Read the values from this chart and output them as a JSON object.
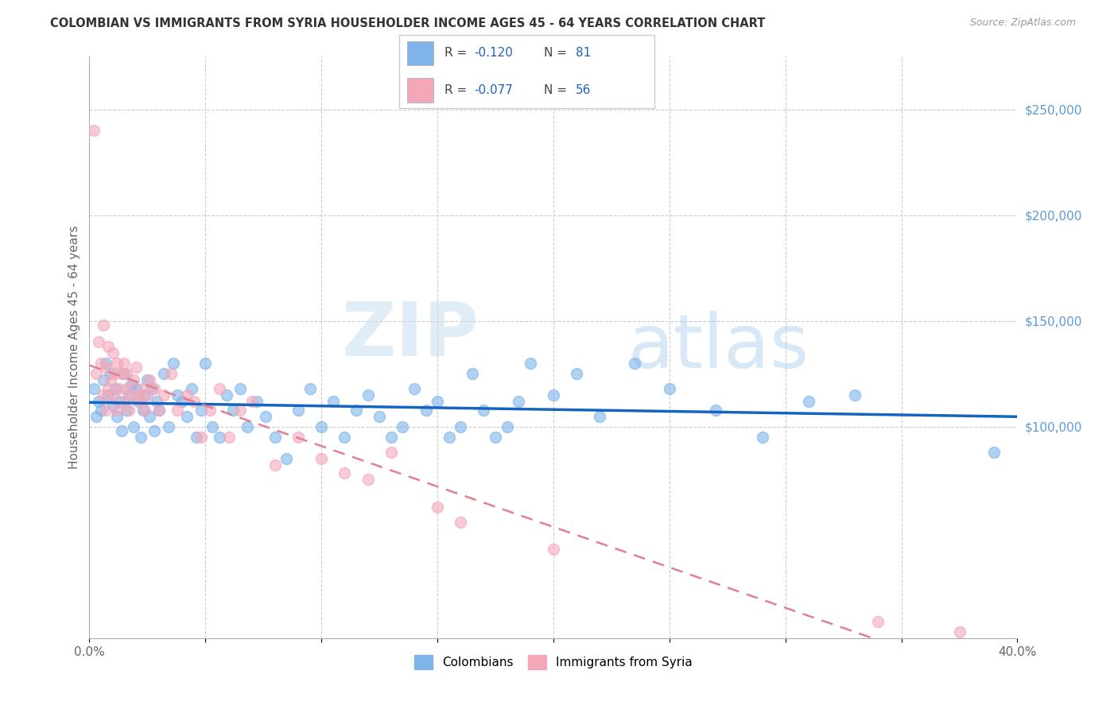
{
  "title": "COLOMBIAN VS IMMIGRANTS FROM SYRIA HOUSEHOLDER INCOME AGES 45 - 64 YEARS CORRELATION CHART",
  "source": "Source: ZipAtlas.com",
  "ylabel": "Householder Income Ages 45 - 64 years",
  "xlim": [
    0.0,
    0.4
  ],
  "ylim": [
    0,
    275000
  ],
  "right_ytick_vals": [
    100000,
    150000,
    200000,
    250000
  ],
  "right_ytick_labels": [
    "$100,000",
    "$150,000",
    "$200,000",
    "$250,000"
  ],
  "color_colombian": "#7eb4ea",
  "color_syria": "#f4a7b9",
  "color_trend_colombian": "#1565c0",
  "color_trend_syria": "#e08090",
  "watermark_zip": "ZIP",
  "watermark_atlas": "atlas",
  "colombian_x": [
    0.002,
    0.003,
    0.004,
    0.005,
    0.006,
    0.007,
    0.008,
    0.009,
    0.01,
    0.011,
    0.012,
    0.013,
    0.014,
    0.015,
    0.016,
    0.017,
    0.018,
    0.019,
    0.02,
    0.021,
    0.022,
    0.023,
    0.024,
    0.025,
    0.026,
    0.027,
    0.028,
    0.029,
    0.03,
    0.032,
    0.034,
    0.036,
    0.038,
    0.04,
    0.042,
    0.044,
    0.046,
    0.048,
    0.05,
    0.053,
    0.056,
    0.059,
    0.062,
    0.065,
    0.068,
    0.072,
    0.076,
    0.08,
    0.085,
    0.09,
    0.095,
    0.1,
    0.105,
    0.11,
    0.115,
    0.12,
    0.125,
    0.13,
    0.135,
    0.14,
    0.145,
    0.15,
    0.155,
    0.16,
    0.165,
    0.17,
    0.175,
    0.18,
    0.185,
    0.19,
    0.2,
    0.21,
    0.22,
    0.235,
    0.25,
    0.27,
    0.29,
    0.31,
    0.33,
    0.39
  ],
  "colombian_y": [
    118000,
    105000,
    112000,
    108000,
    122000,
    130000,
    115000,
    125000,
    110000,
    118000,
    105000,
    112000,
    98000,
    125000,
    108000,
    115000,
    120000,
    100000,
    118000,
    112000,
    95000,
    108000,
    115000,
    122000,
    105000,
    118000,
    98000,
    112000,
    108000,
    125000,
    100000,
    130000,
    115000,
    112000,
    105000,
    118000,
    95000,
    108000,
    130000,
    100000,
    95000,
    115000,
    108000,
    118000,
    100000,
    112000,
    105000,
    95000,
    85000,
    108000,
    118000,
    100000,
    112000,
    95000,
    108000,
    115000,
    105000,
    95000,
    100000,
    118000,
    108000,
    112000,
    95000,
    100000,
    125000,
    108000,
    95000,
    100000,
    112000,
    130000,
    115000,
    125000,
    105000,
    130000,
    118000,
    108000,
    95000,
    112000,
    115000,
    88000
  ],
  "syria_x": [
    0.002,
    0.003,
    0.004,
    0.005,
    0.006,
    0.006,
    0.007,
    0.007,
    0.008,
    0.008,
    0.009,
    0.01,
    0.01,
    0.011,
    0.012,
    0.012,
    0.013,
    0.014,
    0.015,
    0.015,
    0.016,
    0.016,
    0.017,
    0.018,
    0.019,
    0.02,
    0.021,
    0.022,
    0.023,
    0.024,
    0.025,
    0.026,
    0.028,
    0.03,
    0.032,
    0.035,
    0.038,
    0.042,
    0.045,
    0.048,
    0.052,
    0.056,
    0.06,
    0.065,
    0.07,
    0.08,
    0.09,
    0.1,
    0.11,
    0.12,
    0.13,
    0.15,
    0.16,
    0.2,
    0.34,
    0.375
  ],
  "syria_y": [
    240000,
    125000,
    140000,
    130000,
    148000,
    115000,
    128000,
    108000,
    138000,
    118000,
    122000,
    135000,
    115000,
    125000,
    130000,
    108000,
    118000,
    125000,
    130000,
    112000,
    118000,
    125000,
    108000,
    115000,
    122000,
    128000,
    115000,
    112000,
    118000,
    108000,
    115000,
    122000,
    118000,
    108000,
    115000,
    125000,
    108000,
    115000,
    112000,
    95000,
    108000,
    118000,
    95000,
    108000,
    112000,
    82000,
    95000,
    85000,
    78000,
    75000,
    88000,
    62000,
    55000,
    42000,
    8000,
    3000
  ]
}
